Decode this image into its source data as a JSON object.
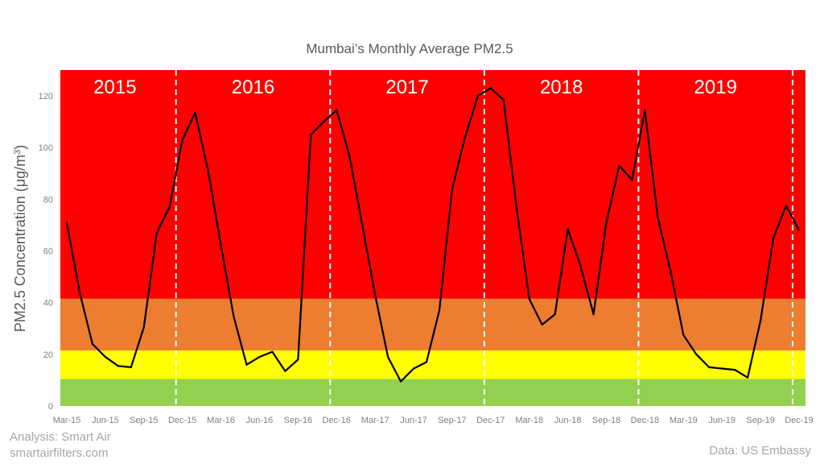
{
  "chart_data": {
    "type": "line",
    "title": "Mumbai’s Monthly Average PM2.5",
    "ylabel_main": "PM2.5 Concentration (μg/m",
    "ylabel_sup": "3",
    "ylabel_tail": ")",
    "ylim": [
      0,
      130
    ],
    "yticks": [
      0,
      20,
      40,
      60,
      80,
      100,
      120
    ],
    "x_count": 58,
    "xtick_labels": [
      {
        "index": 0,
        "label": "Mar-15"
      },
      {
        "index": 3,
        "label": "Jun-15"
      },
      {
        "index": 6,
        "label": "Sep-15"
      },
      {
        "index": 9,
        "label": "Dec-15"
      },
      {
        "index": 12,
        "label": "Mar-16"
      },
      {
        "index": 15,
        "label": "Jun-16"
      },
      {
        "index": 18,
        "label": "Sep-16"
      },
      {
        "index": 21,
        "label": "Dec-16"
      },
      {
        "index": 24,
        "label": "Mar-17"
      },
      {
        "index": 27,
        "label": "Jun-17"
      },
      {
        "index": 30,
        "label": "Sep-17"
      },
      {
        "index": 33,
        "label": "Dec-17"
      },
      {
        "index": 36,
        "label": "Mar-18"
      },
      {
        "index": 39,
        "label": "Jun-18"
      },
      {
        "index": 42,
        "label": "Sep-18"
      },
      {
        "index": 45,
        "label": "Dec-18"
      },
      {
        "index": 48,
        "label": "Mar-19"
      },
      {
        "index": 51,
        "label": "Jun-19"
      },
      {
        "index": 54,
        "label": "Sep-19"
      },
      {
        "index": 57,
        "label": "Dec-19"
      }
    ],
    "series": [
      {
        "values": [
          71,
          44,
          24,
          19,
          15.5,
          15,
          30.5,
          67,
          77,
          103,
          113.5,
          91,
          62,
          34.5,
          16,
          19,
          21,
          13.5,
          18,
          105,
          110,
          114.5,
          97,
          70,
          43,
          19,
          9.5,
          14.5,
          17,
          37,
          84,
          104,
          120,
          123,
          118.5,
          77,
          41.5,
          31.5,
          35.5,
          68.5,
          54,
          35.5,
          71,
          93,
          87.5,
          114.5,
          73,
          52,
          27.5,
          20,
          15,
          14.5,
          14,
          11,
          33,
          65,
          77.5,
          68
        ]
      }
    ],
    "bands": [
      {
        "from": 0,
        "to": 10.5,
        "color": "#92d050"
      },
      {
        "from": 10.5,
        "to": 21.5,
        "color": "#ffff00"
      },
      {
        "from": 21.5,
        "to": 41.5,
        "color": "#ed7d31"
      },
      {
        "from": 41.5,
        "to": 130,
        "color": "#ff0000"
      }
    ],
    "year_dividers": [
      {
        "after_index": 8.5
      },
      {
        "after_index": 20.5
      },
      {
        "after_index": 32.5
      },
      {
        "after_index": 44.5
      },
      {
        "after_index": 56.5
      }
    ],
    "year_labels": [
      {
        "label": "2015",
        "center_index": 3.75
      },
      {
        "label": "2016",
        "center_index": 14.5
      },
      {
        "label": "2017",
        "center_index": 26.5
      },
      {
        "label": "2018",
        "center_index": 38.5
      },
      {
        "label": "2019",
        "center_index": 50.5
      }
    ],
    "line_color": "#000000",
    "grid": false,
    "legend": "none"
  },
  "credits": {
    "analysis": "Analysis: Smart Air",
    "website": "smartairfilters.com",
    "source": "Data: US Embassy"
  }
}
